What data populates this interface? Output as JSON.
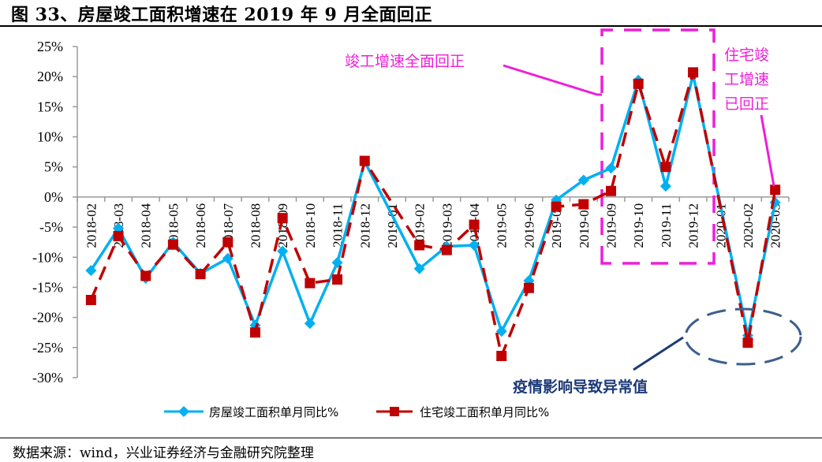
{
  "figure": {
    "title": "图 33、房屋竣工面积增速在 2019 年 9 月全面回正",
    "source": "数据来源：wind，兴业证券经济与金融研究院整理"
  },
  "annotations": {
    "all_positive": "竣工增速全面回正",
    "residential_positive_lines": [
      "住宅竣",
      "工增速",
      "已回正"
    ],
    "epidemic": "疫情影响导致异常值"
  },
  "colors": {
    "series_blue": "#00b0f0",
    "series_red": "#c00000",
    "annotation_pink": "#ee1ed8",
    "annotation_navy": "#1c3a78",
    "ellipse": "#3c5f8c",
    "axis": "#9a9a9a"
  },
  "chart_data": {
    "type": "line",
    "title": "房屋竣工面积增速在 2019 年 9 月全面回正",
    "xlabel": "",
    "ylabel": "",
    "ylim": [
      -30,
      25
    ],
    "yticks": [
      "25%",
      "20%",
      "15%",
      "10%",
      "5%",
      "0%",
      "-5%",
      "-10%",
      "-15%",
      "-20%",
      "-25%",
      "-30%"
    ],
    "grid": false,
    "legend_position": "bottom",
    "categories": [
      "2018-02",
      "2018-03",
      "2018-04",
      "2018-05",
      "2018-06",
      "2018-07",
      "2018-08",
      "2018-09",
      "2018-10",
      "2018-11",
      "2018-12",
      "2019-01",
      "2019-02",
      "2019-03",
      "2019-04",
      "2019-05",
      "2019-06",
      "2019-07",
      "2019-08",
      "2019-09",
      "2019-10",
      "2019-11",
      "2019-12",
      "2020-01",
      "2020-02",
      "2020-03"
    ],
    "series": [
      {
        "name": "房屋竣工面积单月同比%",
        "style": "solid line, diamond markers",
        "values": [
          -12.2,
          -5.2,
          -13.5,
          -7.5,
          -12.7,
          -10.2,
          -21.3,
          -9.0,
          -21.0,
          -10.9,
          5.9,
          null,
          -11.9,
          -8.2,
          -8.0,
          -22.3,
          -13.9,
          -0.5,
          2.8,
          4.8,
          19.4,
          1.8,
          20.3,
          null,
          -23.0,
          -0.9
        ]
      },
      {
        "name": "住宅竣工面积单月同比%",
        "style": "dashed line, square markers",
        "values": [
          -17.1,
          -6.5,
          -13.1,
          -7.9,
          -12.8,
          -7.5,
          -22.5,
          -3.5,
          -14.3,
          -13.7,
          6.0,
          null,
          -8.0,
          -8.8,
          -4.6,
          -26.4,
          -15.1,
          -1.6,
          -1.2,
          1.0,
          18.8,
          5.0,
          20.7,
          null,
          -24.2,
          1.2
        ]
      }
    ]
  }
}
